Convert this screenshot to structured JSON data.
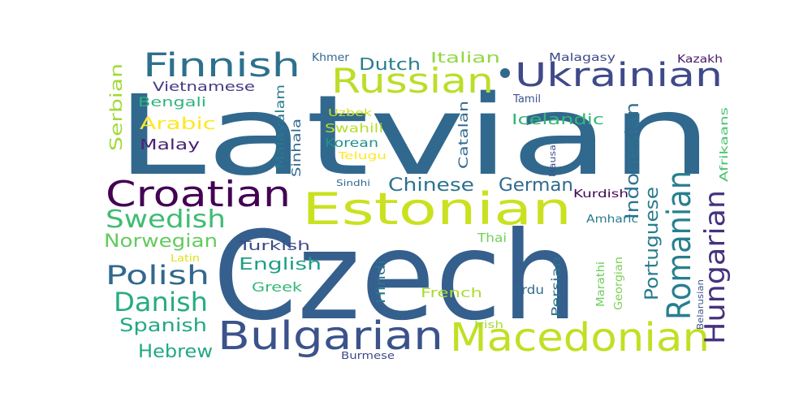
{
  "words": [
    {
      "text": "Latvian",
      "color": "#31688e"
    },
    {
      "text": "Czech",
      "color": "#355f8d"
    },
    {
      "text": "Estonian",
      "color": "#cae11f"
    },
    {
      "text": "Bulgarian",
      "color": "#3b528b"
    },
    {
      "text": "Macedonian",
      "color": "#c2df23"
    },
    {
      "text": "Croatian",
      "color": "#440154"
    },
    {
      "text": "Russian",
      "color": "#bade28"
    },
    {
      "text": "Finnish",
      "color": "#2d708e"
    },
    {
      "text": "Ukrainian",
      "color": "#3e4a89"
    },
    {
      "text": "Romanian",
      "color": "#277f8e"
    },
    {
      "text": "Hungarian",
      "color": "#46317e"
    },
    {
      "text": "Swedish",
      "color": "#3fbc73"
    },
    {
      "text": "Polish",
      "color": "#31688e"
    },
    {
      "text": "Danish",
      "color": "#25ac82"
    },
    {
      "text": "Norwegian",
      "color": "#63cb5f"
    },
    {
      "text": "Spanish",
      "color": "#22a884"
    },
    {
      "text": "Hebrew",
      "color": "#22a884"
    },
    {
      "text": "Chinese",
      "color": "#2c728e"
    },
    {
      "text": "German",
      "color": "#306a8e"
    },
    {
      "text": "Indonesian",
      "color": "#2c728e"
    },
    {
      "text": "Portuguese",
      "color": "#287c8e"
    },
    {
      "text": "Dutch",
      "color": "#277f8e"
    },
    {
      "text": "Italian",
      "color": "#93d741"
    },
    {
      "text": "Vietnamese",
      "color": "#443983"
    },
    {
      "text": "Bengali",
      "color": "#2fb47c"
    },
    {
      "text": "Arabic",
      "color": "#fde725"
    },
    {
      "text": "Malay",
      "color": "#482374"
    },
    {
      "text": "Serbian",
      "color": "#a0da39"
    },
    {
      "text": "Malayalam",
      "color": "#29798e"
    },
    {
      "text": "Sinhala",
      "color": "#31688e"
    },
    {
      "text": "Swahili",
      "color": "#b8de29"
    },
    {
      "text": "Korean",
      "color": "#20928c"
    },
    {
      "text": "Telugu",
      "color": "#fde725"
    },
    {
      "text": "Uzbek",
      "color": "#d0e11c"
    },
    {
      "text": "Catalan",
      "color": "#31688e"
    },
    {
      "text": "Icelandic",
      "color": "#35b779"
    },
    {
      "text": "Tamil",
      "color": "#3b528b"
    },
    {
      "text": "Khmer",
      "color": "#31688e"
    },
    {
      "text": "Malagasy",
      "color": "#3f4788"
    },
    {
      "text": "Kazakh",
      "color": "#481769"
    },
    {
      "text": "Afrikaans",
      "color": "#4ac16d"
    },
    {
      "text": "Hausa",
      "color": "#3b528b"
    },
    {
      "text": "Sindhi",
      "color": "#31688e"
    },
    {
      "text": "Kurdish",
      "color": "#440154"
    },
    {
      "text": "Amharic",
      "color": "#287c8e"
    },
    {
      "text": "Thai",
      "color": "#73d056"
    },
    {
      "text": "Turkish",
      "color": "#3e4a89"
    },
    {
      "text": "English",
      "color": "#1f9e89"
    },
    {
      "text": "Greek",
      "color": "#35b779"
    },
    {
      "text": "Latin",
      "color": "#dde318"
    },
    {
      "text": "Hindi",
      "color": "#2a768e"
    },
    {
      "text": "Persian",
      "color": "#2c728e"
    },
    {
      "text": "French",
      "color": "#aadc32"
    },
    {
      "text": "Urdu",
      "color": "#31688e"
    },
    {
      "text": "Marathi",
      "color": "#6ccd5a"
    },
    {
      "text": "Georgian",
      "color": "#7ad151"
    },
    {
      "text": "Belarusian",
      "color": "#3b528b"
    },
    {
      "text": "Irish",
      "color": "#a5db36"
    },
    {
      "text": "Burmese",
      "color": "#3e4a89"
    }
  ]
}
